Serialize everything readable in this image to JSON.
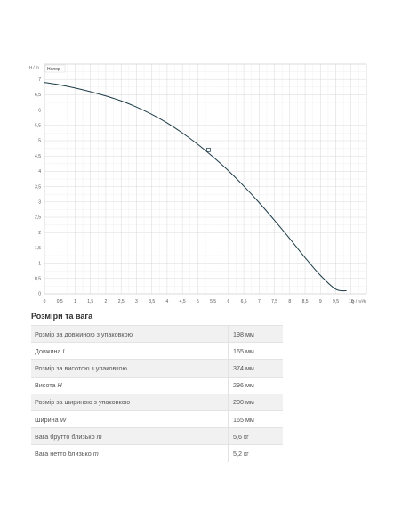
{
  "chart_data": {
    "type": "line",
    "title": "",
    "ylabel": "H / m",
    "xlabel": "Q / m³/h",
    "xlim": [
      0,
      10.5
    ],
    "ylim": [
      0,
      7.5
    ],
    "xticks": [
      "0",
      "0,5",
      "1",
      "1,5",
      "2",
      "2,5",
      "3",
      "3,5",
      "4",
      "4,5",
      "5",
      "5,5",
      "6",
      "6,5",
      "7",
      "7,5",
      "8",
      "8,5",
      "9",
      "9,5",
      "10"
    ],
    "yticks": [
      "0",
      "0,5",
      "1",
      "1,5",
      "2",
      "2,5",
      "3",
      "3,5",
      "4",
      "4,5",
      "5",
      "5,5",
      "6",
      "6,5",
      "7"
    ],
    "grid": true,
    "legend": {
      "position": "top-left",
      "label": "Напор"
    },
    "series": [
      {
        "name": "Напор",
        "color": "#1c3b47",
        "x": [
          0,
          0.5,
          1,
          1.5,
          2,
          2.5,
          3,
          3.5,
          4,
          4.5,
          5,
          5.5,
          6,
          6.5,
          7,
          7.5,
          8,
          8.5,
          9,
          9.5,
          9.85
        ],
        "y": [
          6.9,
          6.82,
          6.72,
          6.6,
          6.46,
          6.3,
          6.1,
          5.86,
          5.58,
          5.25,
          4.88,
          4.47,
          4.02,
          3.52,
          2.98,
          2.4,
          1.8,
          1.18,
          0.6,
          0.15,
          0.1
        ]
      }
    ],
    "marker": {
      "x": 5.35,
      "y": 4.7
    }
  },
  "specs": {
    "title": "Розміри та вага",
    "rows": [
      {
        "label": "Розмір за довжиною з упаковкою",
        "symbol": "",
        "value": "198 мм"
      },
      {
        "label": "Довжина",
        "symbol": "L",
        "value": "165 мм"
      },
      {
        "label": "Розмір за висотою з упаковкою",
        "symbol": "",
        "value": "374 мм"
      },
      {
        "label": "Висота",
        "symbol": "H",
        "value": "296 мм"
      },
      {
        "label": "Розмір за шириною з упаковкою",
        "symbol": "",
        "value": "200 мм"
      },
      {
        "label": "Ширина",
        "symbol": "W",
        "value": "165 мм"
      },
      {
        "label": "Вага брутто близько",
        "symbol": "m",
        "value": "5,6 кг"
      },
      {
        "label": "Вага нетто близько",
        "symbol": "m",
        "value": "5,2 кг"
      }
    ]
  }
}
